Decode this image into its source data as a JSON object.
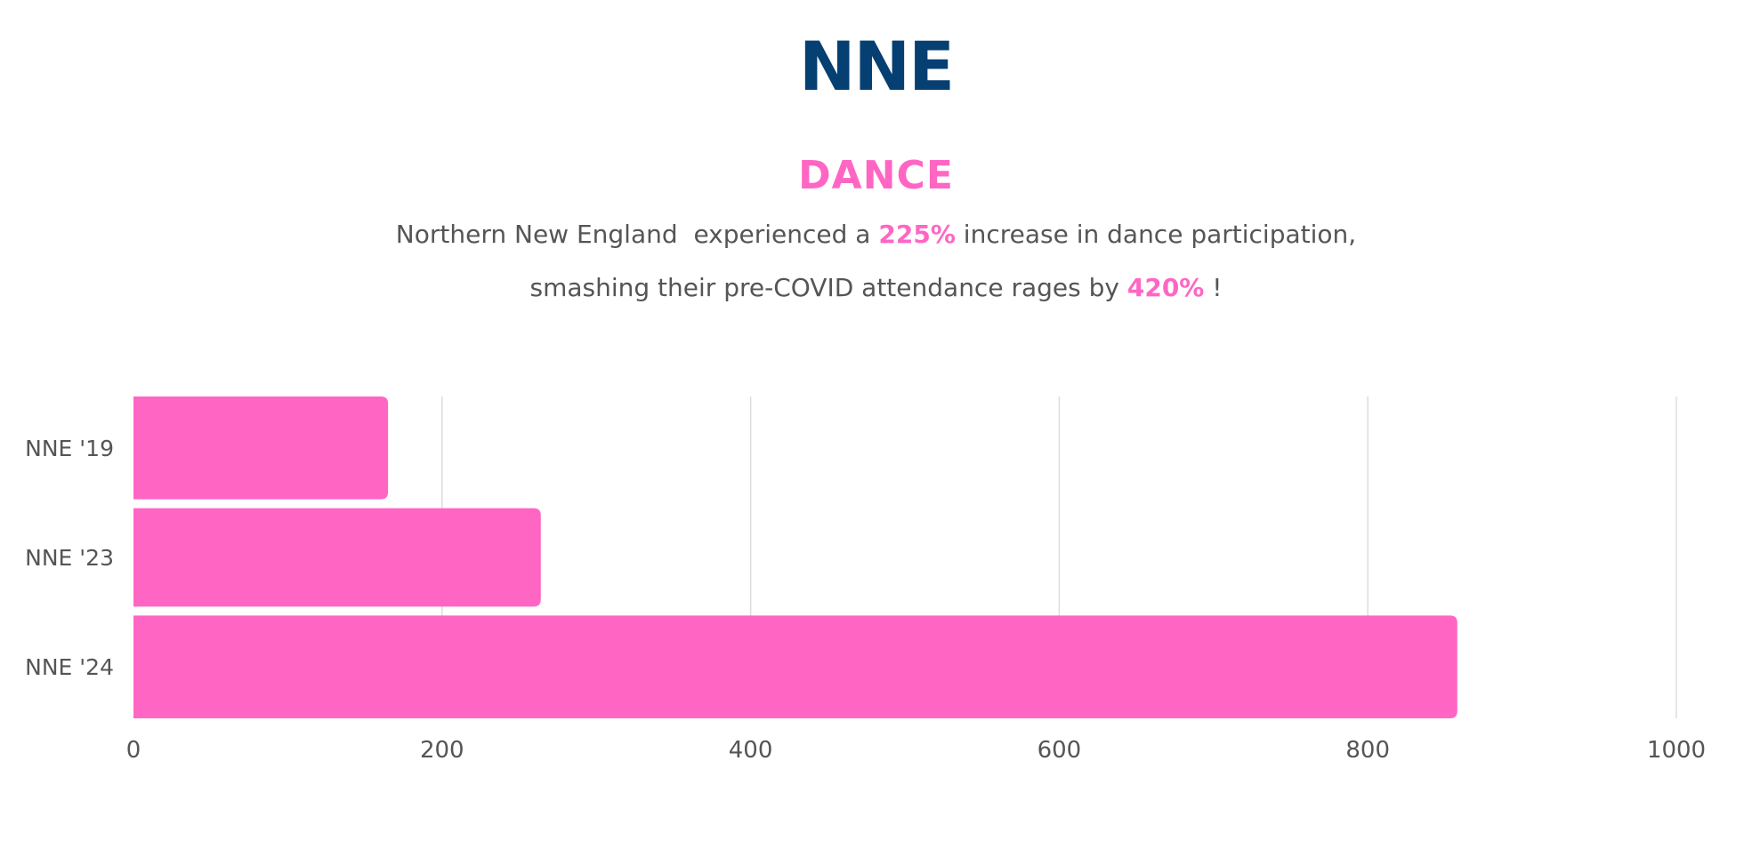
{
  "header": {
    "title": "NNE",
    "subtitle": "DANCE",
    "line1_pre": "Northern New England  experienced a ",
    "line1_highlight": "225%",
    "line1_post": " increase in dance participation,",
    "line2_pre": "smashing their pre-COVID attendance rages by ",
    "line2_highlight": "420%",
    "line2_post": " !"
  },
  "colors": {
    "title": "#063f72",
    "accent": "#ff66c4",
    "text": "#555555",
    "grid": "#dddddd"
  },
  "chart_data": {
    "type": "bar",
    "orientation": "horizontal",
    "categories": [
      "NNE '19",
      "NNE '23",
      "NNE '24"
    ],
    "values": [
      165,
      264,
      858
    ],
    "xlim": [
      0,
      1000
    ],
    "xticks": [
      0,
      200,
      400,
      600,
      800,
      1000
    ],
    "grid": true,
    "legend": "none"
  }
}
